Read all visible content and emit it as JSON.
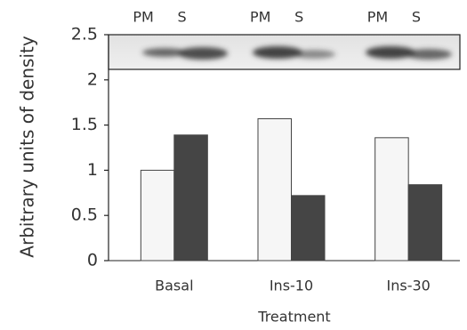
{
  "chart_data": {
    "type": "bar",
    "y_label": "Arbitrary units of density",
    "x_label": "Treatment",
    "categories": [
      "Basal",
      "Ins-10",
      "Ins-30"
    ],
    "series": [
      {
        "name": "PM",
        "color": "#f6f6f6",
        "values": [
          1.0,
          1.57,
          1.36
        ]
      },
      {
        "name": "S",
        "color": "#454545",
        "values": [
          1.39,
          0.72,
          0.84
        ]
      }
    ],
    "ylim": [
      0,
      2.5
    ],
    "yticks": [
      0,
      0.5,
      1,
      1.5,
      2,
      2.5
    ]
  }
}
